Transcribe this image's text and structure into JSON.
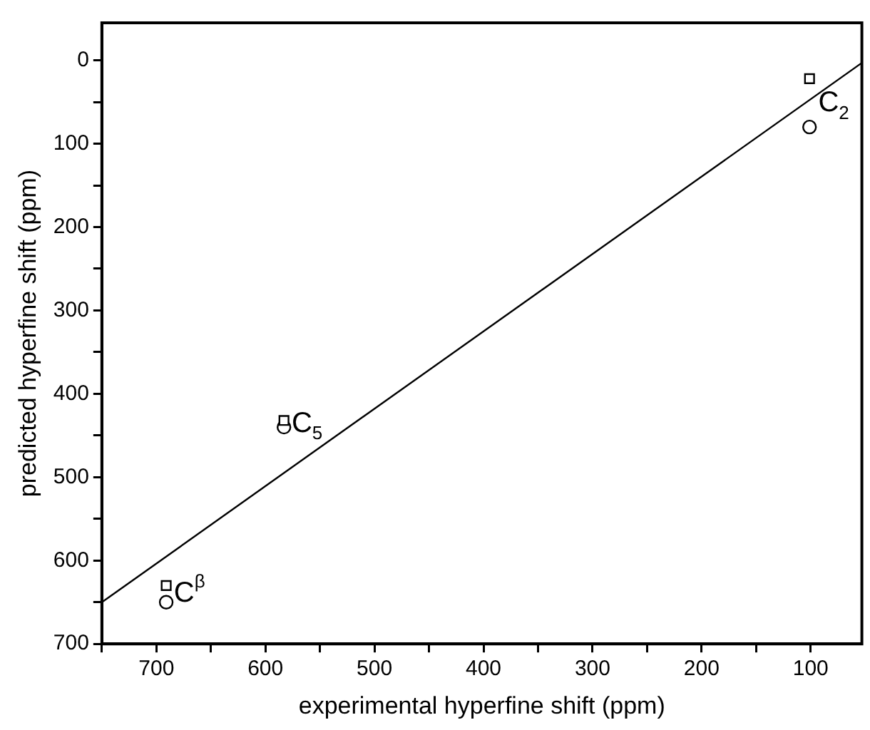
{
  "chart_data": {
    "type": "scatter",
    "xlabel": "experimental hyperfine shift (ppm)",
    "ylabel": "predicted hyperfine shift (ppm)",
    "xlim": [
      750,
      53
    ],
    "ylim": [
      700,
      -45
    ],
    "xticks": [
      {
        "value": 750,
        "label": null
      },
      700,
      {
        "value": 650,
        "label": null
      },
      600,
      {
        "value": 550,
        "label": null
      },
      500,
      {
        "value": 450,
        "label": null
      },
      400,
      {
        "value": 350,
        "label": null
      },
      300,
      {
        "value": 250,
        "label": null
      },
      200,
      {
        "value": 150,
        "label": null
      },
      100
    ],
    "yticks": [
      0,
      {
        "value": 50,
        "label": null
      },
      100,
      {
        "value": 150,
        "label": null
      },
      200,
      {
        "value": 250,
        "label": null
      },
      300,
      {
        "value": 350,
        "label": null
      },
      400,
      {
        "value": 450,
        "label": null
      },
      500,
      {
        "value": 550,
        "label": null
      },
      600,
      {
        "value": 650,
        "label": null
      },
      700
    ],
    "grid": false,
    "legend": false,
    "series": [
      {
        "type": "scatter",
        "marker": "square",
        "color": "#000000",
        "x": [
          691,
          583,
          101
        ],
        "values": [
          630,
          432,
          22
        ]
      },
      {
        "type": "scatter",
        "marker": "circle",
        "color": "#000000",
        "x": [
          691,
          583,
          101
        ],
        "values": [
          650,
          440,
          80
        ]
      },
      {
        "type": "line",
        "marker": "none",
        "color": "#000000",
        "x": [
          750,
          53
        ],
        "values": [
          650,
          3
        ]
      }
    ],
    "annotations": [
      {
        "text": "C$_{2}$",
        "x": 93,
        "y": 52
      },
      {
        "text": "C$_{5}$",
        "x": 576,
        "y": 436
      },
      {
        "text": "C$^{β}$",
        "x": 684,
        "y": 640
      }
    ]
  }
}
